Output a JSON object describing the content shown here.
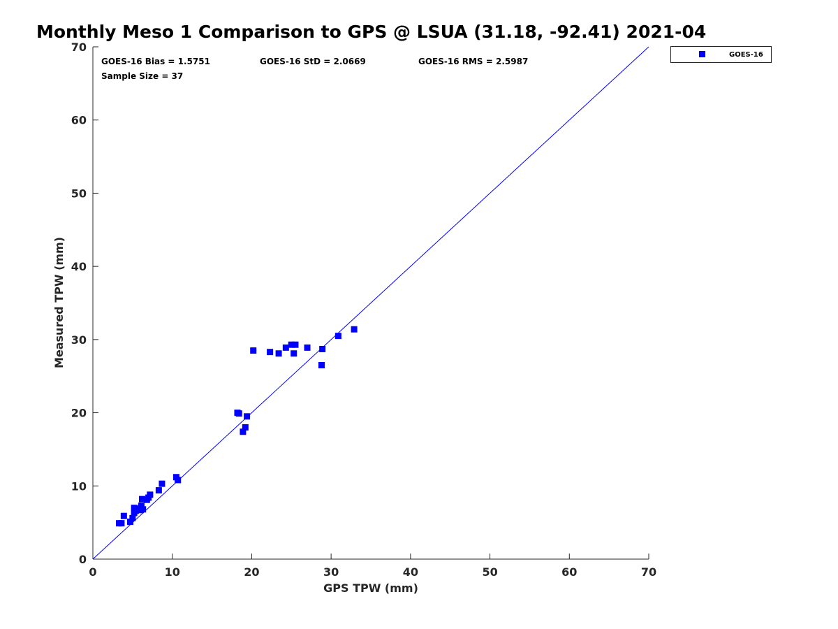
{
  "chart_data": {
    "type": "scatter",
    "title": "Monthly Meso 1 Comparison to GPS @ LSUA (31.18, -92.41) 2021-04",
    "xlabel": "GPS TPW (mm)",
    "ylabel": "Measured TPW (mm)",
    "xlim": [
      0,
      70
    ],
    "ylim": [
      0,
      70
    ],
    "xticks": [
      "0",
      "10",
      "20",
      "30",
      "40",
      "50",
      "60",
      "70"
    ],
    "yticks": [
      "0",
      "10",
      "20",
      "30",
      "40",
      "50",
      "60",
      "70"
    ],
    "grid": false,
    "legend_position": "outside top-right",
    "annotations": {
      "bias": "GOES-16 Bias = 1.5751",
      "std": "GOES-16 StD = 2.0669",
      "rms": "GOES-16 RMS = 2.5987",
      "sample": "Sample Size = 37"
    },
    "reference_line": {
      "x": [
        0,
        70
      ],
      "y": [
        0,
        70
      ],
      "color": "#0000ff"
    },
    "series": [
      {
        "name": "GOES-16",
        "color": "#0000ff",
        "marker": "square",
        "points": [
          [
            3.3,
            4.9
          ],
          [
            3.6,
            4.9
          ],
          [
            3.9,
            5.9
          ],
          [
            4.7,
            5.1
          ],
          [
            5.0,
            5.6
          ],
          [
            5.2,
            6.3
          ],
          [
            5.2,
            7.0
          ],
          [
            5.4,
            6.6
          ],
          [
            5.7,
            6.9
          ],
          [
            6.0,
            6.7
          ],
          [
            6.1,
            7.3
          ],
          [
            6.2,
            8.2
          ],
          [
            6.3,
            6.8
          ],
          [
            6.8,
            8.1
          ],
          [
            7.0,
            8.4
          ],
          [
            7.2,
            8.8
          ],
          [
            8.3,
            9.4
          ],
          [
            8.7,
            10.3
          ],
          [
            10.5,
            11.2
          ],
          [
            10.7,
            10.8
          ],
          [
            18.2,
            20.0
          ],
          [
            18.4,
            19.9
          ],
          [
            18.9,
            17.4
          ],
          [
            19.2,
            18.0
          ],
          [
            19.4,
            19.5
          ],
          [
            20.2,
            28.5
          ],
          [
            22.3,
            28.3
          ],
          [
            23.4,
            28.1
          ],
          [
            24.3,
            28.9
          ],
          [
            25.0,
            29.3
          ],
          [
            25.3,
            28.1
          ],
          [
            25.5,
            29.3
          ],
          [
            27.0,
            28.9
          ],
          [
            28.8,
            26.5
          ],
          [
            28.9,
            28.7
          ],
          [
            30.9,
            30.5
          ],
          [
            32.9,
            31.4
          ]
        ]
      }
    ]
  }
}
